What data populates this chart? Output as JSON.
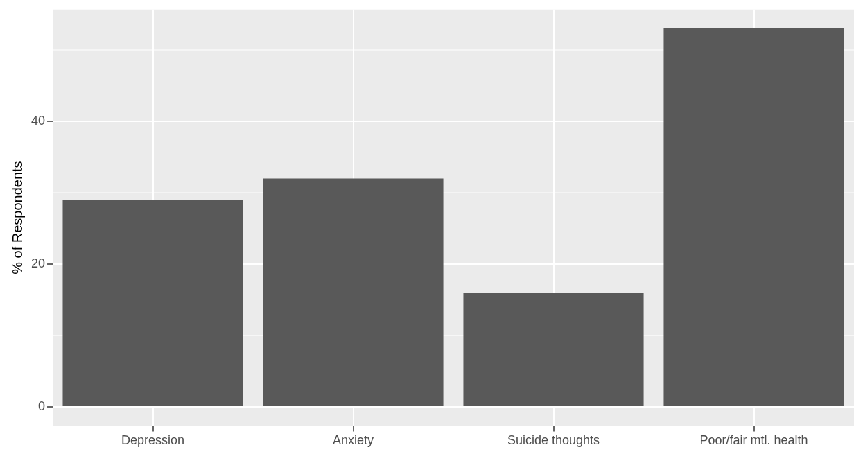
{
  "chart_data": {
    "type": "bar",
    "ylabel": "% of Respondents",
    "categories": [
      "Depression",
      "Anxiety",
      "Suicide thoughts",
      "Poor/fair mtl. health"
    ],
    "values": [
      29,
      32,
      16,
      53
    ],
    "color": "#595959",
    "ylim": [
      -2.65,
      55.65
    ],
    "yticks": [
      0,
      20,
      40
    ],
    "grid": true,
    "legend": false
  }
}
